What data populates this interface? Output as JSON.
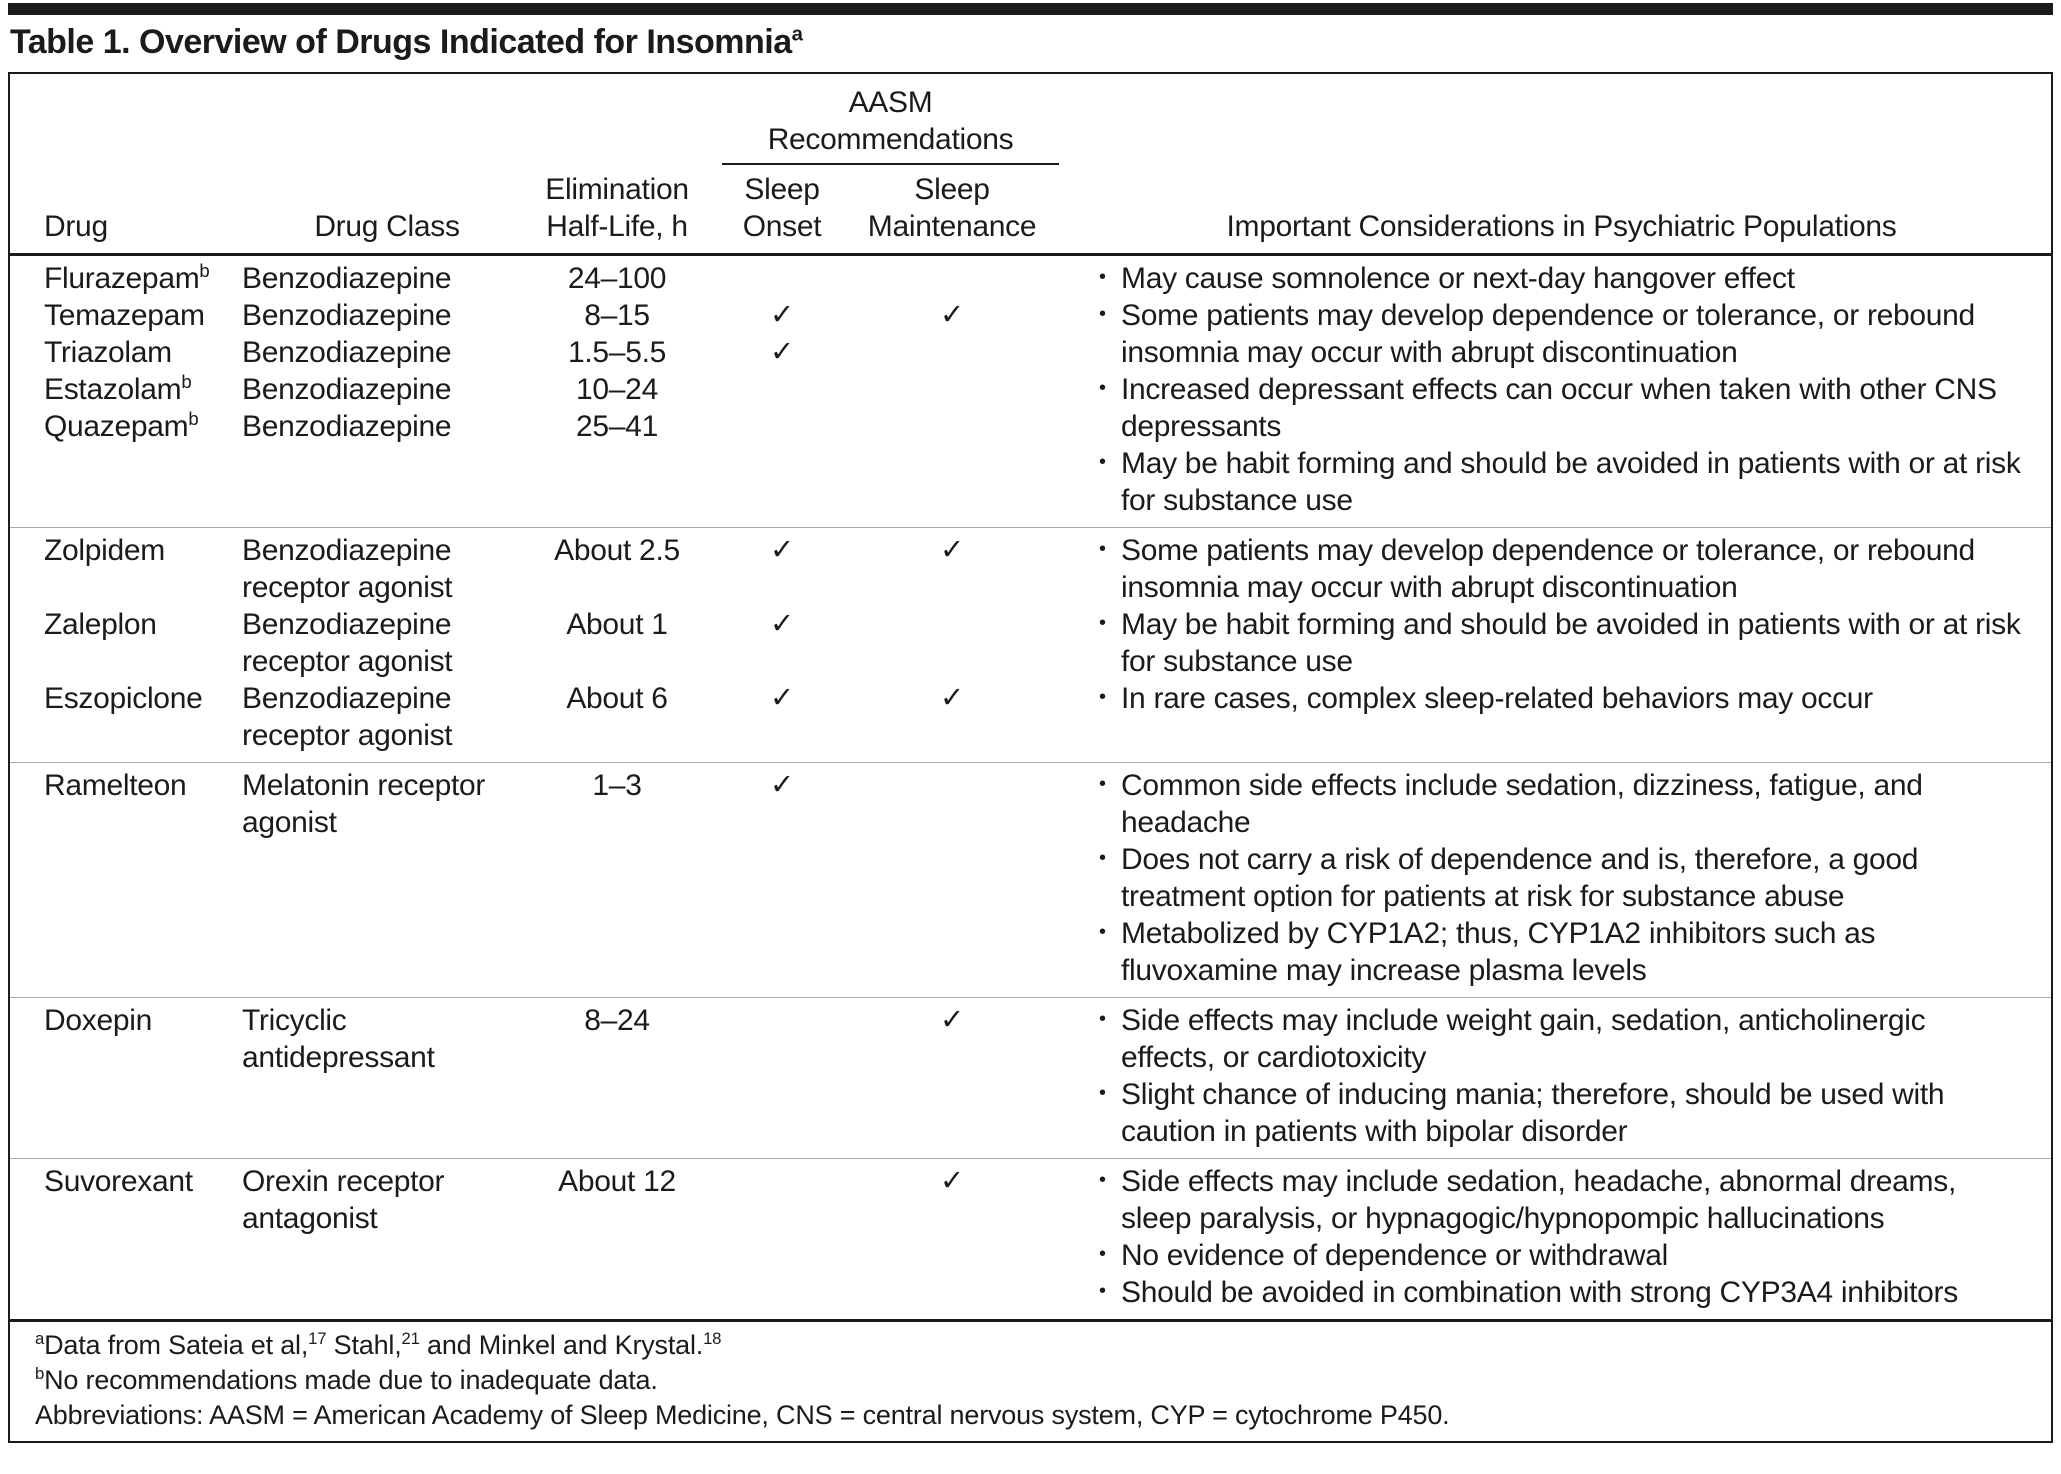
{
  "title": {
    "text": "Table 1. Overview of Drugs Indicated for Insomnia",
    "superscript": "a"
  },
  "header": {
    "drug": "Drug",
    "drug_class": "Drug Class",
    "half_life": "Elimination\nHalf-Life, h",
    "aasm_group": "AASM\nRecommendations",
    "sleep_onset": "Sleep\nOnset",
    "sleep_maintenance": "Sleep\nMaintenance",
    "considerations": "Important Considerations in Psychiatric Populations"
  },
  "groups": [
    {
      "drugs": [
        {
          "name": "Flurazepam",
          "sup": "b",
          "drug_class": "Benzodiazepine",
          "half_life": "24–100",
          "onset": "",
          "maintenance": ""
        },
        {
          "name": "Temazepam",
          "drug_class": "Benzodiazepine",
          "half_life": "8–15",
          "onset": "✓",
          "maintenance": "✓"
        },
        {
          "name": "Triazolam",
          "drug_class": "Benzodiazepine",
          "half_life": "1.5–5.5",
          "onset": "✓",
          "maintenance": ""
        },
        {
          "name": "Estazolam",
          "sup": "b",
          "drug_class": "Benzodiazepine",
          "half_life": "10–24",
          "onset": "",
          "maintenance": ""
        },
        {
          "name": "Quazepam",
          "sup": "b",
          "drug_class": "Benzodiazepine",
          "half_life": "25–41",
          "onset": "",
          "maintenance": ""
        }
      ],
      "considerations": [
        "May cause somnolence or next-day hangover effect",
        "Some patients may develop dependence or tolerance, or rebound insomnia may occur with abrupt discontinuation",
        "Increased depressant effects can occur when taken with other CNS depressants",
        "May be habit forming and should be avoided in patients with or at risk for substance use"
      ]
    },
    {
      "drugs": [
        {
          "name": "Zolpidem",
          "drug_class": "Benzodiazepine\nreceptor agonist",
          "half_life": "About 2.5",
          "onset": "✓",
          "maintenance": "✓"
        },
        {
          "name": "Zaleplon",
          "drug_class": "Benzodiazepine\nreceptor agonist",
          "half_life": "About 1",
          "onset": "✓",
          "maintenance": ""
        },
        {
          "name": "Eszopiclone",
          "drug_class": "Benzodiazepine\nreceptor agonist",
          "half_life": "About 6",
          "onset": "✓",
          "maintenance": "✓"
        }
      ],
      "considerations": [
        "Some patients may develop dependence or tolerance, or rebound insomnia may occur with abrupt discontinuation",
        "May be habit forming and should be avoided in patients with or at risk for substance use",
        "In rare cases, complex sleep-related behaviors may occur"
      ]
    },
    {
      "drugs": [
        {
          "name": "Ramelteon",
          "drug_class": "Melatonin receptor\nagonist",
          "half_life": "1–3",
          "onset": "✓",
          "maintenance": ""
        }
      ],
      "considerations": [
        "Common side effects include sedation, dizziness, fatigue, and headache",
        "Does not carry a risk of dependence and is, therefore, a good treatment option for patients at risk for substance abuse",
        "Metabolized by CYP1A2; thus, CYP1A2 inhibitors such as fluvoxamine may increase plasma levels"
      ]
    },
    {
      "drugs": [
        {
          "name": "Doxepin",
          "drug_class": "Tricyclic\nantidepressant",
          "half_life": "8–24",
          "onset": "",
          "maintenance": "✓"
        }
      ],
      "considerations": [
        "Side effects may include weight gain, sedation, anticholinergic effects, or cardiotoxicity",
        "Slight chance of inducing mania; therefore, should be used with caution in patients with bipolar disorder"
      ]
    },
    {
      "drugs": [
        {
          "name": "Suvorexant",
          "drug_class": "Orexin receptor\nantagonist",
          "half_life": "About 12",
          "onset": "",
          "maintenance": "✓"
        }
      ],
      "considerations": [
        "Side effects may include sedation, headache, abnormal dreams, sleep paralysis, or hypnagogic/hypnopompic hallucinations",
        "No evidence of dependence or withdrawal",
        "Should be avoided in combination with strong CYP3A4 inhibitors"
      ]
    }
  ],
  "footnotes": {
    "a": {
      "marker": "a",
      "seg1": "Data from Sateia et al,",
      "sup1": "17",
      "seg2": " Stahl,",
      "sup2": "21",
      "seg3": " and Minkel and Krystal.",
      "sup3": "18"
    },
    "b": {
      "marker": "b",
      "text": "No recommendations made due to inadequate data."
    },
    "abbreviations": "Abbreviations: AASM = American Academy of Sleep Medicine, CNS = central nervous system, CYP = cytochrome P450."
  }
}
